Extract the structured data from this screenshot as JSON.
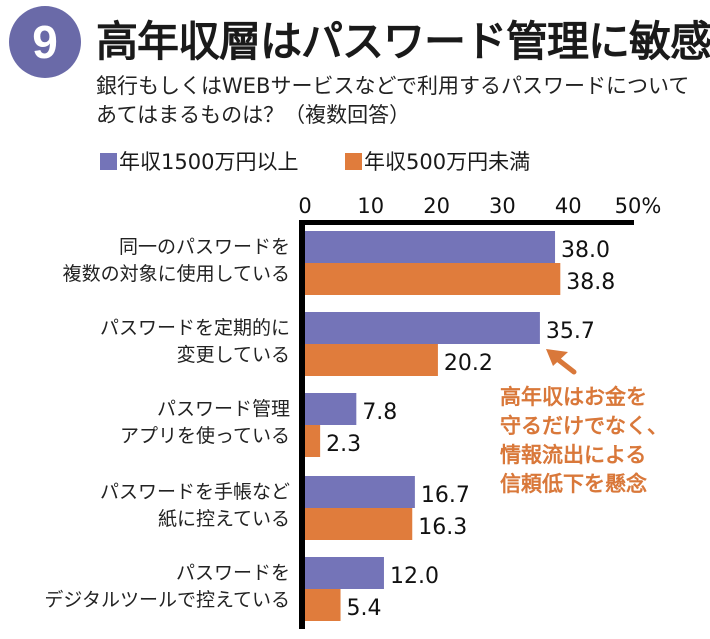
{
  "header": {
    "number": "9",
    "title": "高年収層はパスワード管理に敏感",
    "subtitle_line1": "銀行もしくはWEBサービスなどで利用するパスワードについて",
    "subtitle_line2": "あてはまるものは？（複数回答）"
  },
  "annotation": {
    "lines": [
      "高年収はお金を",
      "守るだけでなく、",
      "情報流出による",
      "信頼低下を懸念"
    ],
    "color": "#d9783a",
    "arrow_icon": "arrow-up-left-icon"
  },
  "colors": {
    "badge": "#6a6aa8",
    "series1": "#7474b8",
    "series2": "#e07c3c",
    "axis": "#000000"
  },
  "chart_data": {
    "type": "bar",
    "orientation": "horizontal",
    "title": "高年収層はパスワード管理に敏感",
    "xlim": [
      0,
      50
    ],
    "ticks": [
      "0",
      "10",
      "20",
      "30",
      "40",
      "50%"
    ],
    "tick_values": [
      0,
      10,
      20,
      30,
      40,
      50
    ],
    "legend_position": "top-left",
    "categories": [
      [
        "同一のパスワードを",
        "複数の対象に使用している"
      ],
      [
        "パスワードを定期的に",
        "変更している"
      ],
      [
        "パスワード管理",
        "アプリを使っている"
      ],
      [
        "パスワードを手帳など",
        "紙に控えている"
      ],
      [
        "パスワードを",
        "デジタルツールで控えている"
      ]
    ],
    "series": [
      {
        "name": "年収1500万円以上",
        "values": [
          38.0,
          35.7,
          7.8,
          16.7,
          12.0
        ],
        "labels": [
          "38.0",
          "35.7",
          "7.8",
          "16.7",
          "12.0"
        ]
      },
      {
        "name": "年収500万円未満",
        "values": [
          38.8,
          20.2,
          2.3,
          16.3,
          5.4
        ],
        "labels": [
          "38.8",
          "20.2",
          "2.3",
          "16.3",
          "5.4"
        ]
      }
    ]
  }
}
